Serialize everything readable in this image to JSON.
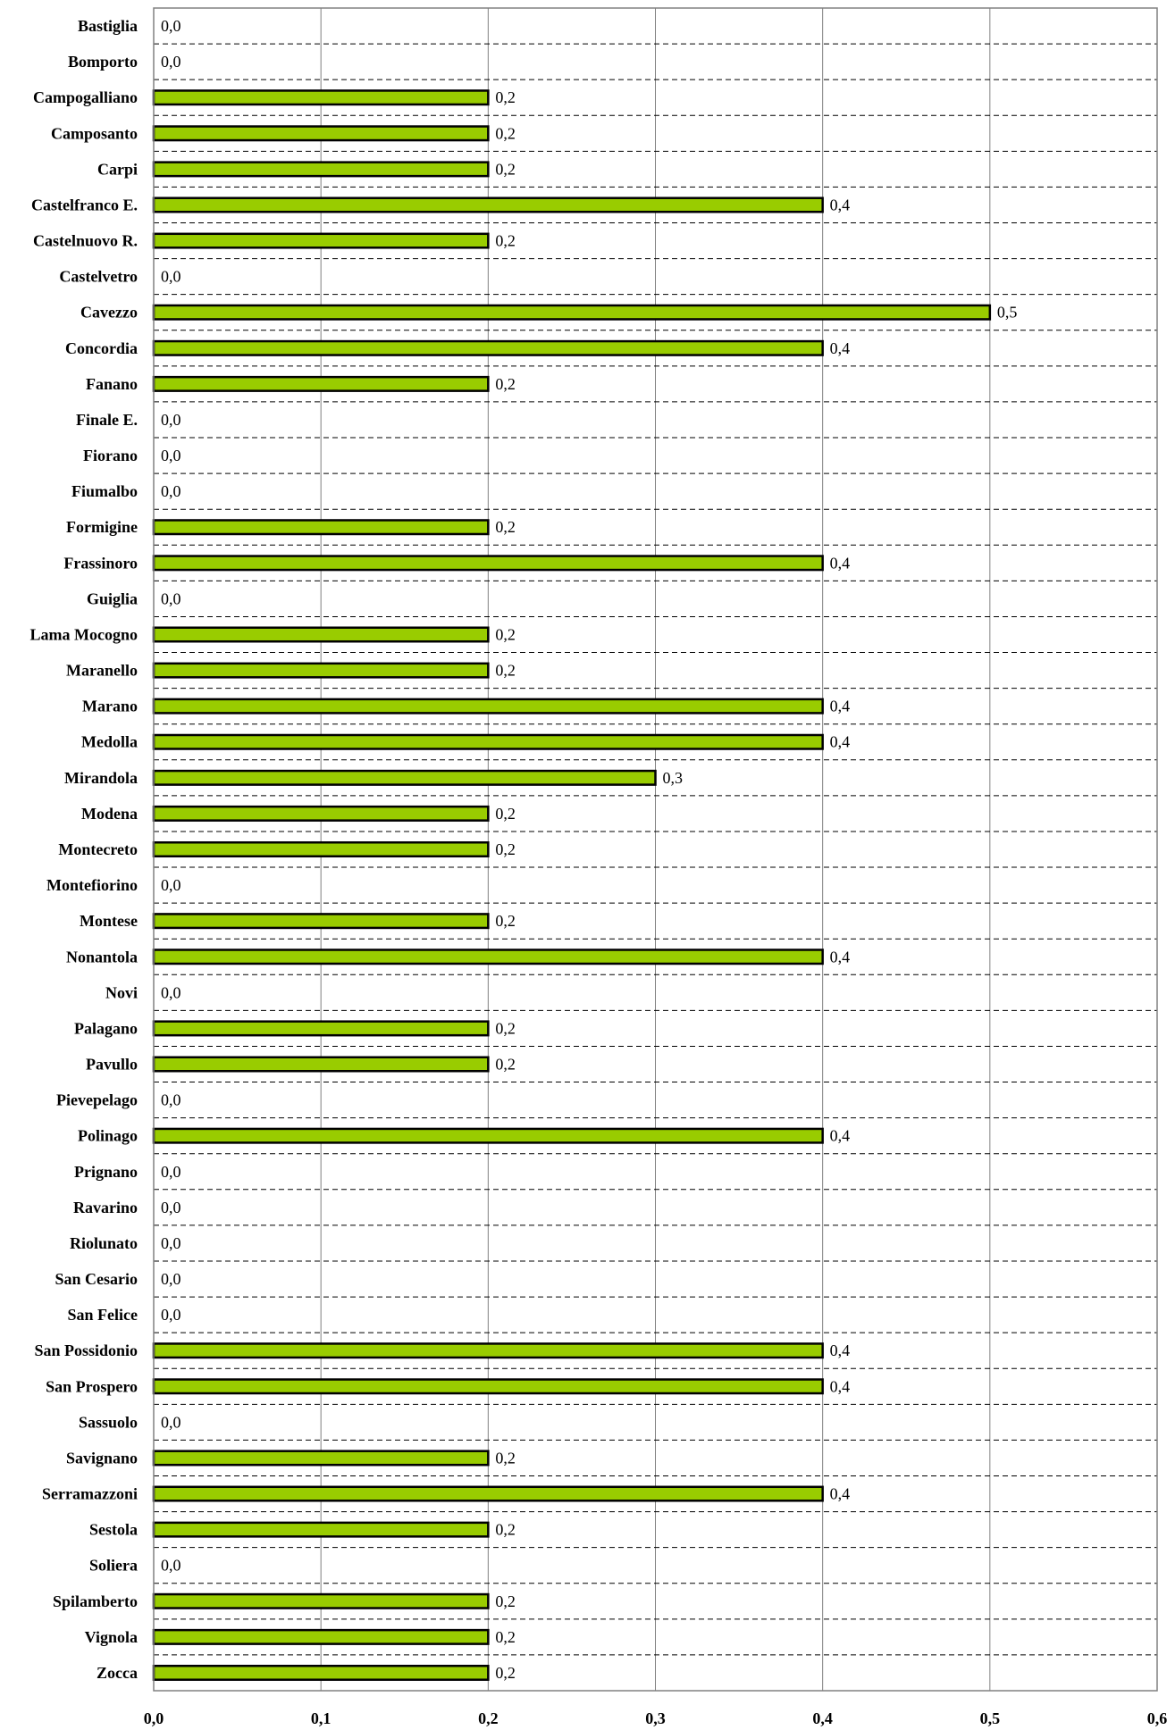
{
  "chart_data": {
    "type": "bar",
    "orientation": "horizontal",
    "categories": [
      "Bastiglia",
      "Bomporto",
      "Campogalliano",
      "Camposanto",
      "Carpi",
      "Castelfranco E.",
      "Castelnuovo R.",
      "Castelvetro",
      "Cavezzo",
      "Concordia",
      "Fanano",
      "Finale E.",
      "Fiorano",
      "Fiumalbo",
      "Formigine",
      "Frassinoro",
      "Guiglia",
      "Lama Mocogno",
      "Maranello",
      "Marano",
      "Medolla",
      "Mirandola",
      "Modena",
      "Montecreto",
      "Montefiorino",
      "Montese",
      "Nonantola",
      "Novi",
      "Palagano",
      "Pavullo",
      "Pievepelago",
      "Polinago",
      "Prignano",
      "Ravarino",
      "Riolunato",
      "San Cesario",
      "San Felice",
      "San Possidonio",
      "San Prospero",
      "Sassuolo",
      "Savignano",
      "Serramazzoni",
      "Sestola",
      "Soliera",
      "Spilamberto",
      "Vignola",
      "Zocca"
    ],
    "values": [
      0.0,
      0.0,
      0.2,
      0.2,
      0.2,
      0.4,
      0.2,
      0.0,
      0.5,
      0.4,
      0.2,
      0.0,
      0.0,
      0.0,
      0.2,
      0.4,
      0.0,
      0.2,
      0.2,
      0.4,
      0.4,
      0.3,
      0.2,
      0.2,
      0.0,
      0.2,
      0.4,
      0.0,
      0.2,
      0.2,
      0.0,
      0.4,
      0.0,
      0.0,
      0.0,
      0.0,
      0.0,
      0.4,
      0.4,
      0.0,
      0.2,
      0.4,
      0.2,
      0.0,
      0.2,
      0.2,
      0.2
    ],
    "data_labels": [
      "0,0",
      "0,0",
      "0,2",
      "0,2",
      "0,2",
      "0,4",
      "0,2",
      "0,0",
      "0,5",
      "0,4",
      "0,2",
      "0,0",
      "0,0",
      "0,0",
      "0,2",
      "0,4",
      "0,0",
      "0,2",
      "0,2",
      "0,4",
      "0,4",
      "0,3",
      "0,2",
      "0,2",
      "0,0",
      "0,2",
      "0,4",
      "0,0",
      "0,2",
      "0,2",
      "0,0",
      "0,4",
      "0,0",
      "0,0",
      "0,0",
      "0,0",
      "0,0",
      "0,4",
      "0,4",
      "0,0",
      "0,2",
      "0,4",
      "0,2",
      "0,0",
      "0,2",
      "0,2",
      "0,2"
    ],
    "x_ticks": [
      "0,0",
      "0,1",
      "0,2",
      "0,3",
      "0,4",
      "0,5",
      "0,6"
    ],
    "xlim": [
      0,
      0.6
    ],
    "title": "",
    "xlabel": "",
    "ylabel": "",
    "grid": "vertical solid gridlines, horizontal dashed separators",
    "bar_color": "#99cc00",
    "bar_edge_color": "#000000",
    "legend": "none"
  }
}
